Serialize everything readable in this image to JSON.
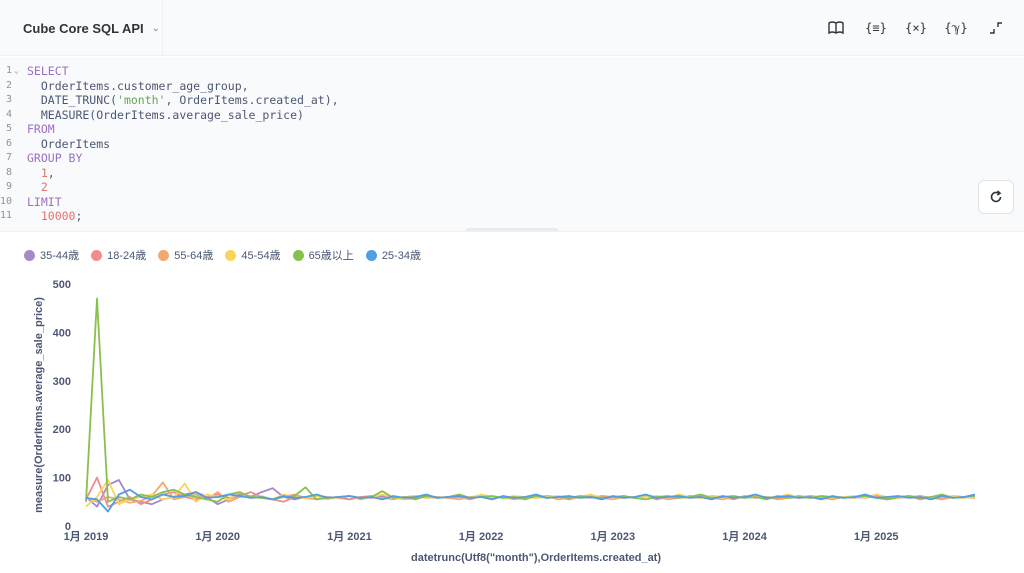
{
  "topbar": {
    "db_select_label": "Cube Core SQL API",
    "tools": [
      {
        "name": "reference-book-icon",
        "glyph": "📖"
      },
      {
        "name": "format-query-icon",
        "glyph": "{≡}"
      },
      {
        "name": "variables-icon",
        "glyph": "{×}"
      },
      {
        "name": "snippets-icon",
        "glyph": "{ℽ}"
      },
      {
        "name": "collapse-icon",
        "glyph": "⌝⌞"
      }
    ]
  },
  "editor": {
    "lines": [
      [
        {
          "t": "SELECT",
          "c": "kw"
        }
      ],
      [
        {
          "t": "  OrderItems.customer_age_group,",
          "c": ""
        }
      ],
      [
        {
          "t": "  DATE_TRUNC(",
          "c": ""
        },
        {
          "t": "'month'",
          "c": "str"
        },
        {
          "t": ", OrderItems.created_at),",
          "c": ""
        }
      ],
      [
        {
          "t": "  MEASURE(OrderItems.average_sale_price)",
          "c": ""
        }
      ],
      [
        {
          "t": "FROM",
          "c": "kw"
        }
      ],
      [
        {
          "t": "  OrderItems",
          "c": ""
        }
      ],
      [
        {
          "t": "GROUP BY",
          "c": "kw"
        }
      ],
      [
        {
          "t": "  1",
          "c": "num"
        },
        {
          "t": ",",
          "c": ""
        }
      ],
      [
        {
          "t": "  2",
          "c": "num"
        }
      ],
      [
        {
          "t": "LIMIT",
          "c": "kw"
        }
      ],
      [
        {
          "t": "  10000",
          "c": "num"
        },
        {
          "t": ";",
          "c": ""
        }
      ]
    ]
  },
  "colors": {
    "35-44歳": "#a989c5",
    "18-24歳": "#ef8c8c",
    "55-64歳": "#f2a86f",
    "45-54歳": "#f9d45c",
    "65歳以上": "#88bf4d",
    "25-34歳": "#509ee3"
  },
  "chart_data": {
    "type": "line",
    "xlabel": "datetrunc(Utf8(\"month\"),OrderItems.created_at)",
    "ylabel": "measure(OrderItems.average_sale_price)",
    "ylim": [
      0,
      500
    ],
    "y_ticks": [
      0,
      100,
      200,
      300,
      400,
      500
    ],
    "x_start": "2019-01",
    "x_ticks": [
      "1月 2019",
      "1月 2020",
      "1月 2021",
      "1月 2022",
      "1月 2023",
      "1月 2024",
      "1月 2025"
    ],
    "legend_position": "top-left",
    "grid": false,
    "series": [
      {
        "name": "35-44歳",
        "values": [
          60,
          40,
          85,
          95,
          55,
          50,
          45,
          55,
          60,
          65,
          70,
          60,
          45,
          55,
          65,
          60,
          70,
          78,
          60,
          55,
          60,
          62,
          58,
          60,
          55,
          60,
          58,
          62,
          60,
          58,
          60,
          62,
          58,
          60,
          60,
          58,
          62,
          60,
          58,
          60,
          60,
          58,
          62,
          60,
          58,
          60,
          62,
          58,
          60,
          60,
          58,
          62,
          60,
          58,
          60,
          60,
          58,
          62,
          60,
          58,
          60,
          62,
          58,
          60,
          60,
          58,
          62,
          60,
          58,
          60,
          60,
          58,
          62,
          60,
          58,
          60,
          62,
          58,
          60,
          60,
          58,
          62,
          60,
          58,
          60,
          60,
          58,
          62,
          60,
          58,
          60,
          62,
          58,
          60,
          60,
          58,
          62,
          60,
          58,
          60,
          60,
          58,
          62,
          60,
          58,
          60,
          62,
          58,
          60,
          60,
          58,
          62,
          60,
          58,
          60,
          60,
          58,
          62,
          60,
          58,
          60,
          62,
          58,
          60,
          60,
          58,
          62,
          60,
          58,
          60,
          60,
          58,
          62,
          60,
          58,
          60,
          62,
          58,
          60,
          60,
          58,
          62,
          60,
          58,
          60,
          60,
          58,
          62,
          60,
          58,
          60,
          62,
          58,
          60,
          60,
          58,
          62,
          60,
          58,
          60,
          60,
          58,
          62,
          60,
          58,
          60,
          62,
          58,
          60,
          60,
          58,
          62,
          60,
          58,
          60,
          60,
          58,
          62,
          60,
          58,
          60,
          62,
          58,
          60,
          60,
          58,
          62,
          60,
          58,
          60,
          60,
          58,
          62,
          60,
          58,
          60,
          62,
          58,
          60,
          60,
          58,
          62,
          60,
          58,
          60,
          60,
          58,
          62,
          60,
          58,
          60,
          62,
          58,
          60,
          60,
          58,
          62,
          60,
          58,
          60,
          60,
          58,
          62,
          60,
          58,
          60,
          62,
          58,
          60,
          60,
          58,
          62,
          60,
          58,
          60,
          60,
          58,
          62,
          60,
          58,
          60,
          62,
          58,
          60,
          60,
          58,
          62,
          60,
          58,
          60,
          60,
          58,
          62,
          60,
          58,
          60,
          62,
          58,
          60,
          60,
          58,
          62,
          60,
          58,
          60,
          60,
          58,
          62,
          60,
          58,
          60,
          62,
          58,
          60,
          60,
          58,
          62,
          60,
          58,
          60,
          60,
          58,
          62,
          60,
          58,
          60,
          62,
          58,
          60,
          60,
          58,
          62,
          60,
          58,
          60,
          60,
          58,
          62,
          60,
          58,
          60,
          62,
          58,
          60,
          60,
          58,
          62,
          60,
          58,
          60,
          60,
          58,
          62,
          60,
          58,
          60,
          62,
          58,
          60,
          60,
          58,
          62,
          60,
          58,
          60,
          60,
          58,
          62,
          60,
          58,
          60,
          62,
          58,
          60,
          60,
          58,
          62,
          60,
          58,
          60,
          60,
          58,
          62,
          60,
          58,
          60,
          62,
          58,
          60,
          60,
          58,
          62,
          60,
          58,
          60,
          60,
          58,
          62,
          60,
          58,
          60,
          62,
          58,
          60,
          60,
          58,
          62,
          60,
          58,
          60,
          60,
          58,
          62,
          60,
          58,
          60,
          62,
          58,
          60,
          60,
          58,
          62,
          60,
          58,
          60,
          60,
          58,
          62,
          60,
          58,
          60,
          62,
          58,
          60,
          60,
          58,
          62,
          60,
          58,
          60,
          60,
          58,
          62,
          60,
          58,
          60,
          62,
          58,
          60,
          60,
          58,
          62,
          60,
          58,
          60
        ]
      },
      {
        "name": "18-24歳",
        "values": [
          55,
          100,
          40,
          50,
          60,
          45,
          55,
          65,
          70,
          60,
          55,
          60,
          65,
          58,
          62,
          70,
          60,
          55,
          50,
          60,
          58,
          62,
          60,
          58,
          55,
          60,
          62,
          58,
          60,
          55,
          58,
          62,
          60,
          58,
          60,
          55,
          62,
          58,
          60,
          58,
          60,
          62,
          58,
          60,
          55,
          60,
          58,
          62,
          60,
          58,
          60,
          62,
          55,
          60,
          58,
          62,
          60,
          58,
          60,
          55,
          62,
          58,
          60,
          58,
          60,
          62,
          58,
          60,
          55,
          60,
          58,
          62,
          60,
          58,
          60,
          62,
          55,
          60,
          58,
          62,
          60,
          58,
          60,
          55,
          62,
          58
        ]
      },
      {
        "name": "55-64歳",
        "values": [
          58,
          50,
          60,
          55,
          48,
          52,
          62,
          90,
          55,
          60,
          65,
          55,
          70,
          50,
          60,
          62,
          58,
          55,
          60,
          65,
          58,
          55,
          60,
          58,
          62,
          55,
          60,
          58,
          55,
          60,
          62,
          58,
          60,
          58,
          55,
          60,
          62,
          58,
          60,
          55,
          58,
          60,
          62,
          55,
          58,
          60,
          62,
          58,
          55,
          60,
          58,
          62,
          60,
          55,
          58,
          60,
          62,
          58,
          55,
          60,
          58,
          62,
          60,
          55,
          58,
          60,
          62,
          58,
          55,
          60,
          58,
          62,
          60,
          55,
          58,
          60,
          62,
          58,
          55,
          60,
          58,
          62,
          60,
          55,
          58,
          60
        ]
      },
      {
        "name": "45-54歳",
        "values": [
          40,
          60,
          95,
          45,
          55,
          60,
          65,
          55,
          60,
          88,
          50,
          65,
          60,
          55,
          70,
          58,
          62,
          55,
          65,
          60,
          58,
          62,
          55,
          60,
          62,
          58,
          60,
          65,
          58,
          55,
          62,
          60,
          58,
          60,
          62,
          58,
          65,
          60,
          58,
          62,
          60,
          58,
          60,
          62,
          58,
          60,
          65,
          58,
          60,
          62,
          58,
          60,
          62,
          58,
          65,
          60,
          58,
          62,
          60,
          58,
          60,
          62,
          58,
          60,
          65,
          58,
          60,
          62,
          58,
          60,
          62,
          58,
          65,
          60,
          58,
          62,
          60,
          58,
          60,
          62,
          58,
          60,
          65,
          58,
          60,
          62
        ]
      },
      {
        "name": "65歳以上",
        "values": [
          50,
          470,
          50,
          60,
          55,
          65,
          60,
          70,
          75,
          65,
          60,
          55,
          50,
          65,
          70,
          60,
          58,
          55,
          60,
          62,
          80,
          55,
          58,
          60,
          62,
          58,
          60,
          72,
          58,
          60,
          55,
          62,
          58,
          60,
          65,
          58,
          60,
          62,
          58,
          60,
          55,
          62,
          58,
          60,
          58,
          62,
          60,
          58,
          60,
          62,
          58,
          55,
          60,
          62,
          58,
          60,
          65,
          58,
          60,
          62,
          58,
          60,
          55,
          62,
          58,
          60,
          58,
          62,
          60,
          58,
          60,
          62,
          58,
          55,
          60,
          62,
          58,
          60,
          65,
          58,
          60,
          62,
          58,
          60,
          55,
          62
        ]
      },
      {
        "name": "25-34歳",
        "values": [
          58,
          55,
          30,
          65,
          75,
          60,
          55,
          65,
          60,
          62,
          70,
          58,
          60,
          65,
          62,
          58,
          60,
          55,
          62,
          58,
          60,
          65,
          58,
          60,
          62,
          58,
          60,
          55,
          62,
          58,
          60,
          65,
          58,
          60,
          62,
          58,
          60,
          55,
          62,
          58,
          60,
          65,
          58,
          60,
          62,
          58,
          60,
          55,
          62,
          58,
          60,
          65,
          58,
          60,
          62,
          58,
          60,
          55,
          62,
          58,
          60,
          65,
          58,
          60,
          62,
          58,
          60,
          55,
          62,
          58,
          60,
          65,
          58,
          60,
          62,
          58,
          60,
          55,
          62,
          58,
          60,
          65,
          58,
          60,
          62,
          48
        ]
      }
    ]
  }
}
